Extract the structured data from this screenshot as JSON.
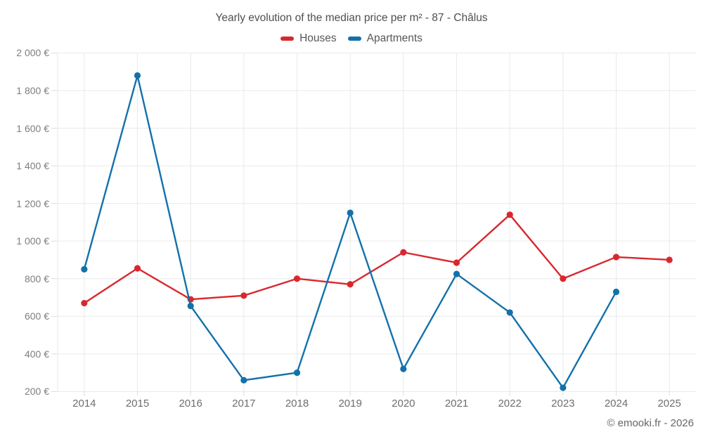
{
  "title": "Yearly evolution of the median price per m² - 87 - Châlus",
  "footer": "© emooki.fr - 2026",
  "chart_data": {
    "type": "line",
    "categories": [
      "2014",
      "2015",
      "2016",
      "2017",
      "2018",
      "2019",
      "2020",
      "2021",
      "2022",
      "2023",
      "2024",
      "2025"
    ],
    "series": [
      {
        "name": "Houses",
        "color": "#d8282e",
        "values": [
          670,
          855,
          690,
          710,
          800,
          770,
          940,
          885,
          1140,
          800,
          915,
          900
        ]
      },
      {
        "name": "Apartments",
        "color": "#1271ab",
        "values": [
          850,
          1880,
          655,
          260,
          300,
          1150,
          320,
          825,
          620,
          220,
          730,
          null
        ]
      }
    ],
    "ylabel": "",
    "xlabel": "",
    "ylim": [
      200,
      2000
    ],
    "ytick_step": 200,
    "ytick_labels": [
      "200 €",
      "400 €",
      "600 €",
      "800 €",
      "1 000 €",
      "1 200 €",
      "1 400 €",
      "1 600 €",
      "1 800 €",
      "2 000 €"
    ],
    "grid": true,
    "legend_position": "top",
    "grid_color": "#e9e9e9",
    "tick_color": "#dcdcdc"
  }
}
